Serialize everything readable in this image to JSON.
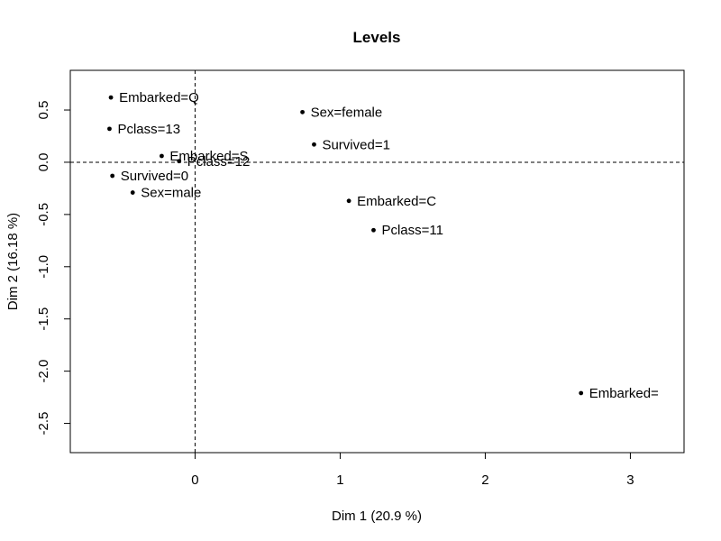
{
  "chart_data": {
    "type": "scatter",
    "title": "Levels",
    "xlabel": "Dim 1 (20.9 %)",
    "ylabel": "Dim 2 (16.18 %)",
    "xlim": [
      -0.86,
      3.37
    ],
    "ylim": [
      -2.78,
      0.88
    ],
    "xticks": [
      0,
      1,
      2,
      3
    ],
    "yticks": [
      -2.5,
      -2.0,
      -1.5,
      -1.0,
      -0.5,
      0.0,
      0.5
    ],
    "xtick_labels": [
      "0",
      "1",
      "2",
      "3"
    ],
    "ytick_labels": [
      "-2.5",
      "-2.0",
      "-1.5",
      "-1.0",
      "-0.5",
      "0.0",
      "0.5"
    ],
    "reference_lines": {
      "x": 0,
      "y": 0
    },
    "grid": false,
    "points": [
      {
        "label": "Embarked=Q",
        "x": -0.58,
        "y": 0.62
      },
      {
        "label": "Pclass=13",
        "x": -0.59,
        "y": 0.32
      },
      {
        "label": "Embarked=S",
        "x": -0.23,
        "y": 0.06
      },
      {
        "label": "Pclass=12",
        "x": -0.11,
        "y": 0.01
      },
      {
        "label": "Survived=0",
        "x": -0.57,
        "y": -0.13
      },
      {
        "label": "Sex=male",
        "x": -0.43,
        "y": -0.29
      },
      {
        "label": "Sex=female",
        "x": 0.74,
        "y": 0.48
      },
      {
        "label": "Survived=1",
        "x": 0.82,
        "y": 0.17
      },
      {
        "label": "Embarked=C",
        "x": 1.06,
        "y": -0.37
      },
      {
        "label": "Pclass=11",
        "x": 1.23,
        "y": -0.65
      },
      {
        "label": "Embarked=",
        "x": 2.66,
        "y": -2.21
      }
    ]
  }
}
